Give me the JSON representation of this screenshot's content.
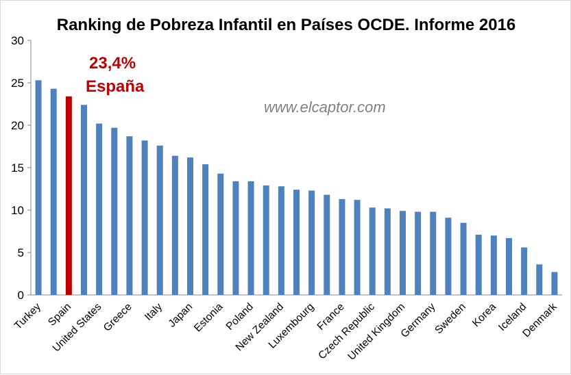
{
  "chart_data": {
    "type": "bar",
    "title": "Ranking de Pobreza Infantil en Países OCDE. Informe 2016",
    "xlabel": "",
    "ylabel": "",
    "ylim": [
      0,
      30
    ],
    "yticks": [
      0,
      5,
      10,
      15,
      20,
      25,
      30
    ],
    "grid": false,
    "legend": "none",
    "bar_color": "#4f81bd",
    "highlight_color": "#c00000",
    "highlight_index": 2,
    "categories": [
      "Turkey",
      "",
      "Spain",
      "",
      "United States",
      "",
      "Greece",
      "",
      "Italy",
      "",
      "Japan",
      "",
      "Estonia",
      "",
      "Poland",
      "",
      "New Zealand",
      "",
      "Luxembourg",
      "",
      "France",
      "",
      "Czech Republic",
      "",
      "United Kingdom",
      "",
      "Germany",
      "",
      "Sweden",
      "",
      "Korea",
      "",
      "Iceland",
      "",
      "Denmark"
    ],
    "values": [
      25.3,
      24.3,
      23.4,
      22.4,
      20.2,
      19.7,
      18.7,
      18.2,
      17.6,
      16.4,
      16.2,
      15.4,
      14.3,
      13.4,
      13.4,
      12.9,
      12.8,
      12.4,
      12.3,
      11.8,
      11.3,
      11.2,
      10.3,
      10.2,
      9.9,
      9.8,
      9.8,
      9.1,
      8.5,
      7.1,
      7.0,
      6.7,
      5.6,
      3.6,
      2.7
    ],
    "annotations": {
      "highlight_value": "23,4%",
      "highlight_name": "España",
      "watermark": "www.elcaptor.com"
    }
  }
}
